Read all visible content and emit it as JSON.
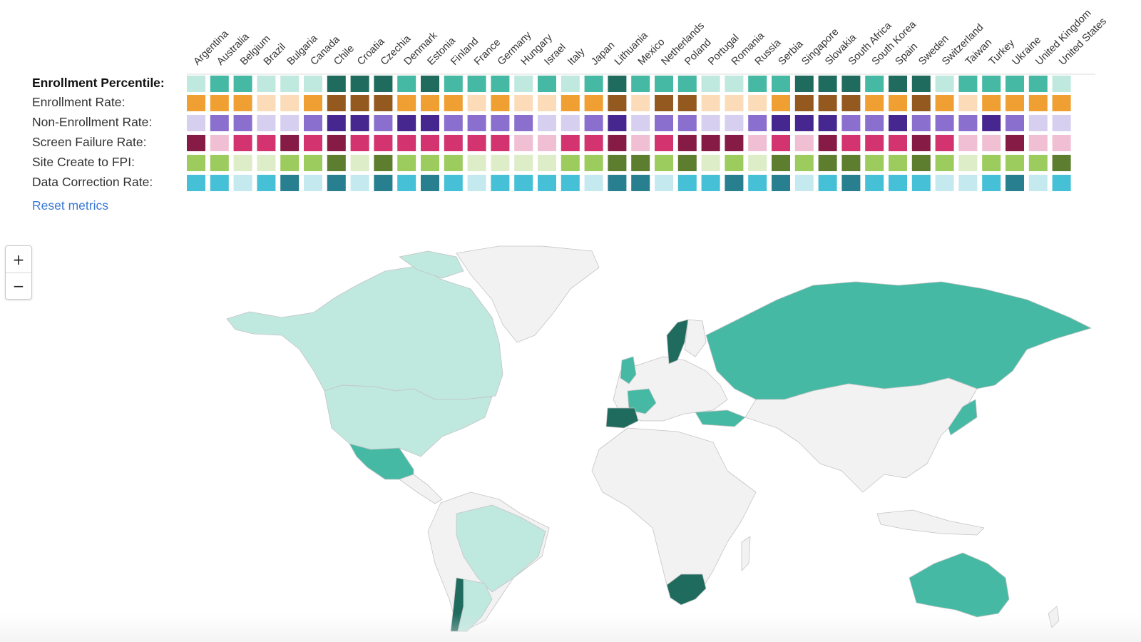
{
  "metrics": [
    {
      "label": "Enrollment Percentile:",
      "active": true
    },
    {
      "label": "Enrollment Rate:",
      "active": false
    },
    {
      "label": "Non-Enrollment Rate:",
      "active": false
    },
    {
      "label": "Screen Failure Rate:",
      "active": false
    },
    {
      "label": "Site Create to FPI:",
      "active": false
    },
    {
      "label": "Data Correction Rate:",
      "active": false
    }
  ],
  "reset_label": "Reset metrics",
  "countries": [
    "Argentina",
    "Australia",
    "Belgium",
    "Brazil",
    "Bulgaria",
    "Canada",
    "Chile",
    "Croatia",
    "Czechia",
    "Denmark",
    "Estonia",
    "Finland",
    "France",
    "Germany",
    "Hungary",
    "Israel",
    "Italy",
    "Japan",
    "Lithuania",
    "Mexico",
    "Netherlands",
    "Poland",
    "Portugal",
    "Romania",
    "Russia",
    "Serbia",
    "Singapore",
    "Slovakia",
    "South Africa",
    "South Korea",
    "Spain",
    "Sweden",
    "Switzerland",
    "Taiwan",
    "Turkey",
    "Ukraine",
    "United Kingdom",
    "United States"
  ],
  "palettes": [
    [
      "#bfe8df",
      "#45b9a3",
      "#1f6b5e"
    ],
    [
      "#fcdcb8",
      "#f0a033",
      "#94591f"
    ],
    [
      "#d6cff0",
      "#8b6fcf",
      "#45278f"
    ],
    [
      "#f0bfd3",
      "#d3336f",
      "#861b46"
    ],
    [
      "#dcedc8",
      "#9ccb5e",
      "#5c7e2e"
    ],
    [
      "#c4eaf0",
      "#46c0d6",
      "#277f8f"
    ]
  ],
  "levels": [
    [
      0,
      1,
      1,
      0,
      0,
      0,
      2,
      2,
      2,
      1,
      2,
      1,
      1,
      1,
      0,
      1,
      0,
      1,
      2,
      1,
      1,
      1,
      0,
      0,
      1,
      1,
      2,
      2,
      2,
      1,
      2,
      2,
      0,
      1,
      1,
      1,
      1,
      0
    ],
    [
      1,
      1,
      1,
      0,
      0,
      1,
      2,
      2,
      2,
      1,
      1,
      1,
      0,
      1,
      0,
      0,
      1,
      1,
      2,
      0,
      2,
      2,
      0,
      0,
      0,
      1,
      2,
      2,
      2,
      1,
      1,
      2,
      1,
      0,
      1,
      1,
      1,
      1
    ],
    [
      0,
      1,
      1,
      0,
      0,
      1,
      2,
      2,
      1,
      2,
      2,
      1,
      1,
      1,
      1,
      0,
      0,
      1,
      2,
      0,
      1,
      1,
      0,
      0,
      1,
      2,
      2,
      2,
      1,
      1,
      2,
      1,
      1,
      1,
      2,
      1,
      0,
      0
    ],
    [
      2,
      0,
      1,
      1,
      2,
      1,
      2,
      1,
      1,
      1,
      1,
      1,
      1,
      1,
      0,
      0,
      1,
      1,
      2,
      0,
      1,
      2,
      2,
      2,
      0,
      1,
      0,
      2,
      1,
      1,
      1,
      2,
      1,
      0,
      0,
      2,
      0,
      0
    ],
    [
      1,
      1,
      0,
      0,
      1,
      1,
      2,
      0,
      2,
      1,
      1,
      1,
      0,
      0,
      0,
      0,
      1,
      1,
      2,
      2,
      1,
      2,
      0,
      1,
      0,
      2,
      1,
      2,
      2,
      1,
      1,
      2,
      1,
      0,
      1,
      1,
      1,
      2
    ],
    [
      1,
      1,
      0,
      1,
      2,
      0,
      2,
      0,
      2,
      1,
      2,
      1,
      0,
      1,
      1,
      1,
      1,
      0,
      2,
      2,
      0,
      1,
      1,
      2,
      1,
      2,
      0,
      1,
      2,
      1,
      1,
      1,
      0,
      0,
      1,
      2,
      0,
      1
    ]
  ],
  "map": {
    "default_fill": "#f2f2f2",
    "legend_colors": [
      "#bfe8df",
      "#45b9a3",
      "#1f6b5e"
    ],
    "country_levels": {
      "Argentina": 0,
      "Australia": 1,
      "Brazil": 0,
      "Canada": 0,
      "United States": 0,
      "Chile": 2,
      "Mexico": 1,
      "Spain": 2,
      "Sweden": 2,
      "South Africa": 2,
      "Russia": 1,
      "Japan": 1,
      "Turkey": 1,
      "France": 1,
      "United Kingdom": 1
    }
  }
}
